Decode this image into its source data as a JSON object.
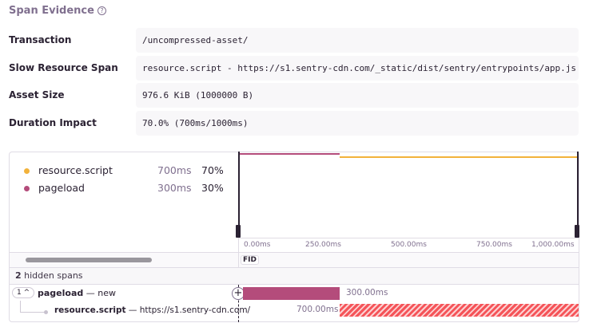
{
  "section": {
    "title": "Span Evidence",
    "help_icon": "question-circle-icon"
  },
  "evidence": [
    {
      "label": "Transaction",
      "value": "/uncompressed-asset/"
    },
    {
      "label": "Slow Resource Span",
      "value": "resource.script - https://s1.sentry-cdn.com/_static/dist/sentry/entrypoints/app.js"
    },
    {
      "label": "Asset Size",
      "value": "976.6 KiB (1000000 B)"
    },
    {
      "label": "Duration Impact",
      "value": "70.0% (700ms/1000ms)"
    }
  ],
  "legend": [
    {
      "name": "resource.script",
      "duration": "700ms",
      "percent": "70%",
      "color": "#f2b23b"
    },
    {
      "name": "pageload",
      "duration": "300ms",
      "percent": "30%",
      "color": "#b44c7b"
    }
  ],
  "axis": {
    "ticks": [
      "0.00ms",
      "250.00ms",
      "500.00ms",
      "750.00ms",
      "1,000.00ms"
    ]
  },
  "fid_label": "FID",
  "hidden_spans": {
    "count": "2",
    "label": "hidden spans"
  },
  "spans": [
    {
      "toggle": "1",
      "op": "pageload",
      "desc": "new",
      "duration": "300.00ms",
      "color": "#b44c7b"
    },
    {
      "op": "resource.script",
      "desc": "https://s1.sentry-cdn.com/",
      "duration": "700.00ms",
      "color": "#f55459"
    }
  ]
}
